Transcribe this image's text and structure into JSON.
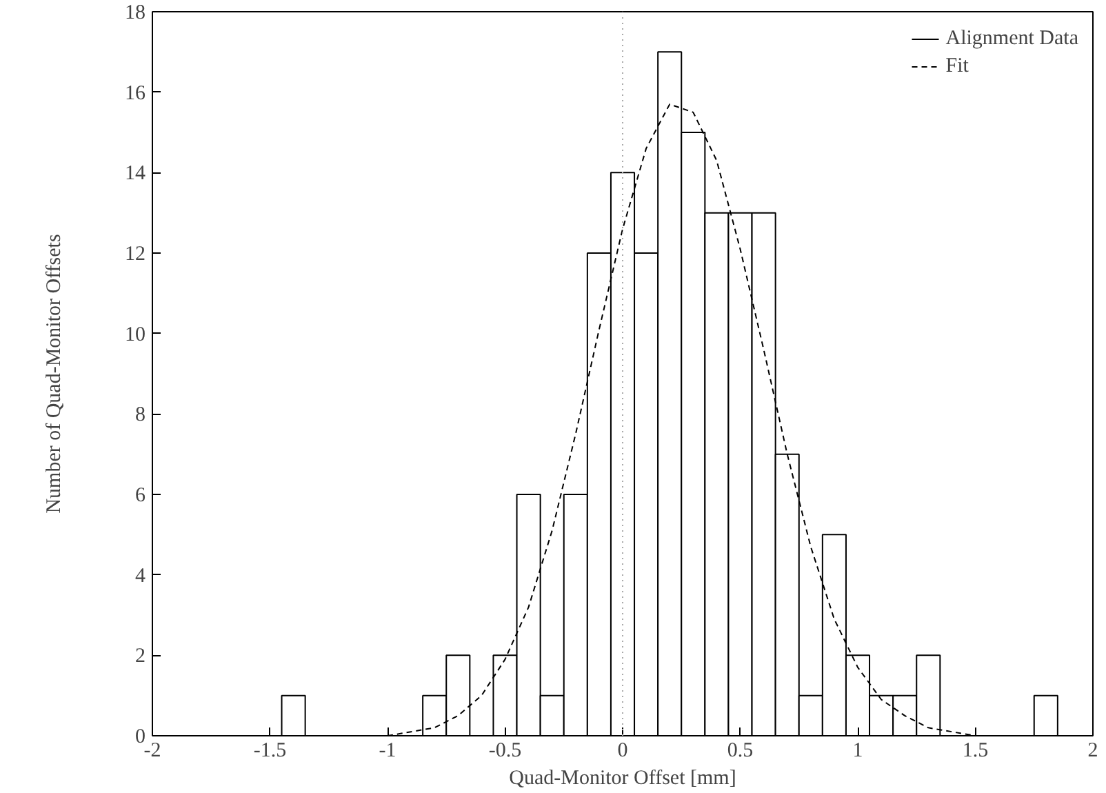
{
  "chart_data": {
    "type": "histogram",
    "xlabel": "Quad-Monitor Offset [mm]",
    "ylabel": "Number of Quad-Monitor Offsets",
    "xlim": [
      -2,
      2
    ],
    "ylim": [
      0,
      18
    ],
    "xticks": [
      -2,
      -1.5,
      -1,
      -0.5,
      0,
      0.5,
      1,
      1.5,
      2
    ],
    "yticks": [
      0,
      2,
      4,
      6,
      8,
      10,
      12,
      14,
      16,
      18
    ],
    "grid": false,
    "legend": "top right",
    "ref_lines": [
      {
        "axis": "x",
        "value": 0,
        "color": "#aaaaaa",
        "line_style": "dotted"
      }
    ],
    "series": [
      {
        "name": "Alignment Data",
        "color": "#000000",
        "bins": [
          -1.45,
          -1.35,
          -1.25,
          -1.15,
          -1.05,
          -0.95,
          -0.85,
          -0.75,
          -0.65,
          -0.55,
          -0.45,
          -0.35,
          -0.25,
          -0.15,
          -0.05,
          0.05,
          0.15,
          0.25,
          0.35,
          0.45,
          0.55,
          0.65,
          0.75,
          0.85,
          0.95,
          1.05,
          1.15,
          1.25,
          1.35,
          1.45,
          1.55,
          1.65,
          1.75,
          1.85
        ],
        "values": [
          1,
          0,
          0,
          0,
          0,
          0,
          1,
          2,
          0,
          2,
          6,
          1,
          6,
          12,
          14,
          12,
          17,
          15,
          13,
          13,
          13,
          7,
          1,
          5,
          2,
          1,
          1,
          2,
          0,
          0,
          0,
          0,
          1
        ]
      },
      {
        "name": "Fit",
        "type": "line",
        "color": "#000000",
        "line_style": "dashed",
        "x": [
          -1,
          -0.9,
          -0.8,
          -0.7,
          -0.6,
          -0.5,
          -0.4,
          -0.3,
          -0.2,
          -0.1,
          0,
          0.1,
          0.2,
          0.3,
          0.4,
          0.5,
          0.6,
          0.7,
          0.8,
          0.9,
          1.0,
          1.1,
          1.2,
          1.3,
          1.4,
          1.5
        ],
        "values": [
          0.0,
          0.1,
          0.2,
          0.5,
          1.0,
          1.9,
          3.2,
          5.1,
          7.5,
          10.1,
          12.6,
          14.6,
          15.7,
          15.5,
          14.3,
          12.1,
          9.6,
          7.0,
          4.7,
          2.9,
          1.7,
          0.9,
          0.5,
          0.2,
          0.1,
          0.0
        ]
      }
    ]
  }
}
